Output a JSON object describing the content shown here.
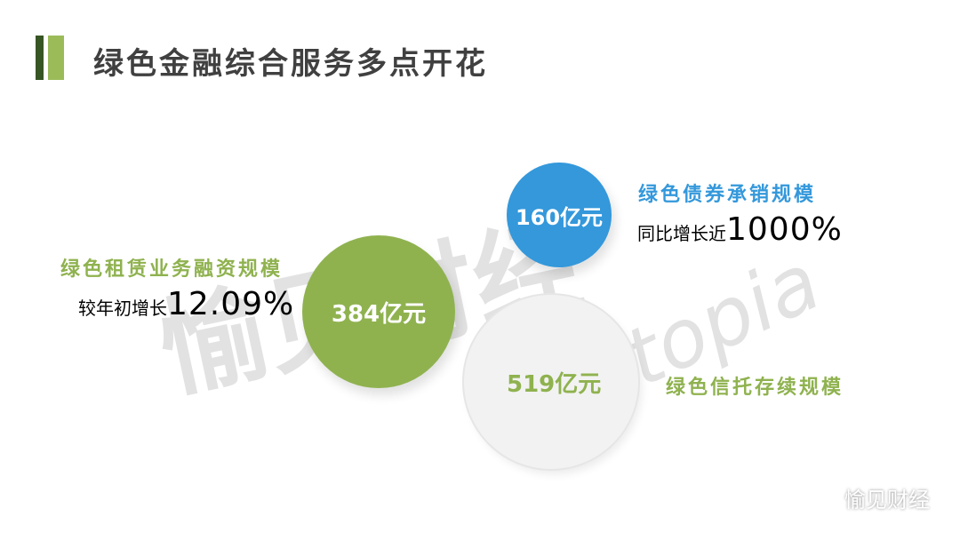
{
  "title": "绿色金融综合服务多点开花",
  "colors": {
    "dark_green": "#375623",
    "green": "#8fb24f",
    "blue": "#3498db",
    "grey": "#f2f2f2"
  },
  "items": [
    {
      "label": "绿色租赁业务融资规模",
      "value": "384亿元",
      "growth_prefix": "较年初增长",
      "growth_value": "12.09%"
    },
    {
      "label": "绿色债券承销规模",
      "value": "160亿元",
      "growth_prefix": "同比增长近",
      "growth_value": "1000%"
    },
    {
      "label": "绿色信托存续规模",
      "value": "519亿元"
    }
  ],
  "watermark": {
    "cn": "愉见财经",
    "en": "Yutopia"
  },
  "footer": {
    "icon": "wechat-icon",
    "brand": "愉见财经"
  }
}
